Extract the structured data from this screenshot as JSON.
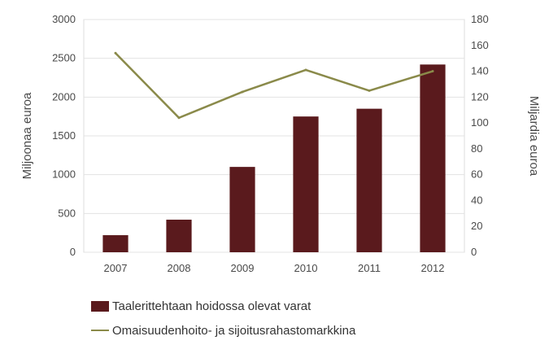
{
  "chart_data": {
    "type": "bar",
    "categories": [
      "2007",
      "2008",
      "2009",
      "2010",
      "2011",
      "2012"
    ],
    "series": [
      {
        "name": "Taalerittehtaan hoidossa olevat varat",
        "type": "bar",
        "axis": "left",
        "values": [
          220,
          420,
          1100,
          1750,
          1850,
          2420
        ],
        "color": "#5a1a1d"
      },
      {
        "name": "Omaisuudenhoito- ja sijoitusrahastomarkkina",
        "type": "line",
        "axis": "right",
        "values": [
          154,
          104,
          124,
          141,
          125,
          140
        ],
        "color": "#8a8a4a"
      }
    ],
    "ylabel": "Miljoonaa euroa",
    "ylabel_right": "Miljardia euroa",
    "ylim": [
      0,
      3000
    ],
    "ylim_right": [
      0,
      180
    ],
    "yticks": [
      "0",
      "500",
      "1000",
      "1500",
      "2000",
      "2500",
      "3000"
    ],
    "yticks_right": [
      "0",
      "20",
      "40",
      "60",
      "80",
      "100",
      "120",
      "140",
      "160",
      "180"
    ],
    "grid": true,
    "legend_position": "bottom"
  }
}
